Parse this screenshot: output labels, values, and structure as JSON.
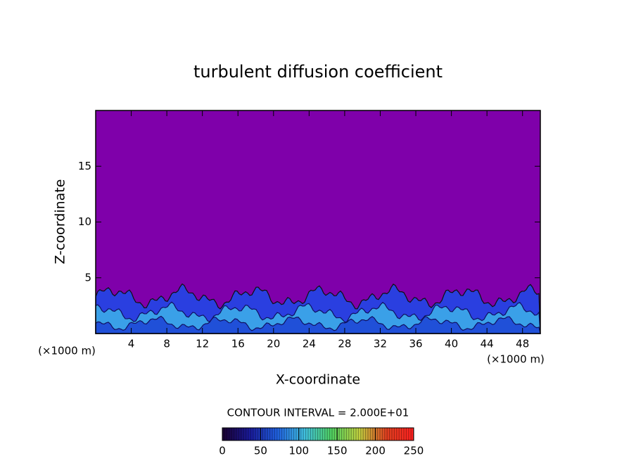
{
  "chart_data": {
    "type": "contour",
    "title": "turbulent diffusion coefficient",
    "x_label": "X-coordinate",
    "y_label": "Z-coordinate",
    "x_unit": "(×1000 m)",
    "xlim": [
      0,
      50
    ],
    "xticks": [
      4,
      8,
      12,
      16,
      20,
      24,
      28,
      32,
      36,
      40,
      44,
      48
    ],
    "ylim": [
      0,
      20
    ],
    "yticks": [
      5,
      10,
      15
    ],
    "background_color": "#7f00aa",
    "contour_interval_label": "CONTOUR INTERVAL = 2.000E+01",
    "colorbar": {
      "lim": [
        0,
        250
      ],
      "ticks": [
        0,
        50,
        100,
        150,
        200,
        250
      ],
      "colors": [
        "#1a0030",
        "#1a1a9a",
        "#2060e0",
        "#40c0e0",
        "#50d060",
        "#c0d040",
        "#e04020",
        "#ff2020"
      ]
    }
  }
}
